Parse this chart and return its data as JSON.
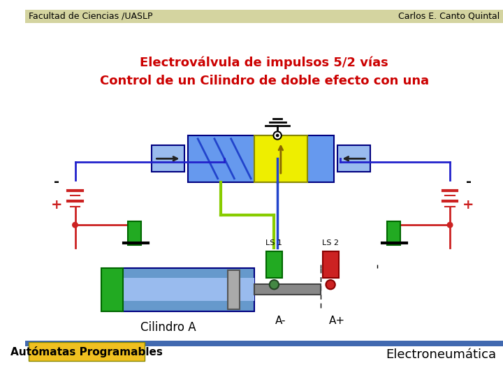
{
  "title_right": "Electroneumática",
  "title_left": "Autómatas Programables",
  "subtitle": "Cilindro A",
  "label_aminus": "A-",
  "label_aplus": "A+",
  "label_ls1": "LS 1",
  "label_ls2": "LS 2",
  "label_plus_left": "+",
  "label_minus_left": "-",
  "label_plus_right": "+",
  "label_minus_right": "-",
  "caption_line1": "Control de un Cilindro de doble efecto con una",
  "caption_line2": "Electroválvula de impulsos 5/2 vías",
  "footer_left": "Facultad de Ciencias /UASLP",
  "footer_right": "Carlos E. Canto Quintal",
  "bg_color": "#ffffff",
  "header_bar_color": "#4169b0",
  "title_left_bg": "#f0c020",
  "title_left_text_color": "#000000",
  "title_right_text_color": "#000000",
  "caption_color": "#cc0000",
  "footer_bg": "#d4d4a0",
  "figsize": [
    7.2,
    5.4
  ],
  "dpi": 100
}
